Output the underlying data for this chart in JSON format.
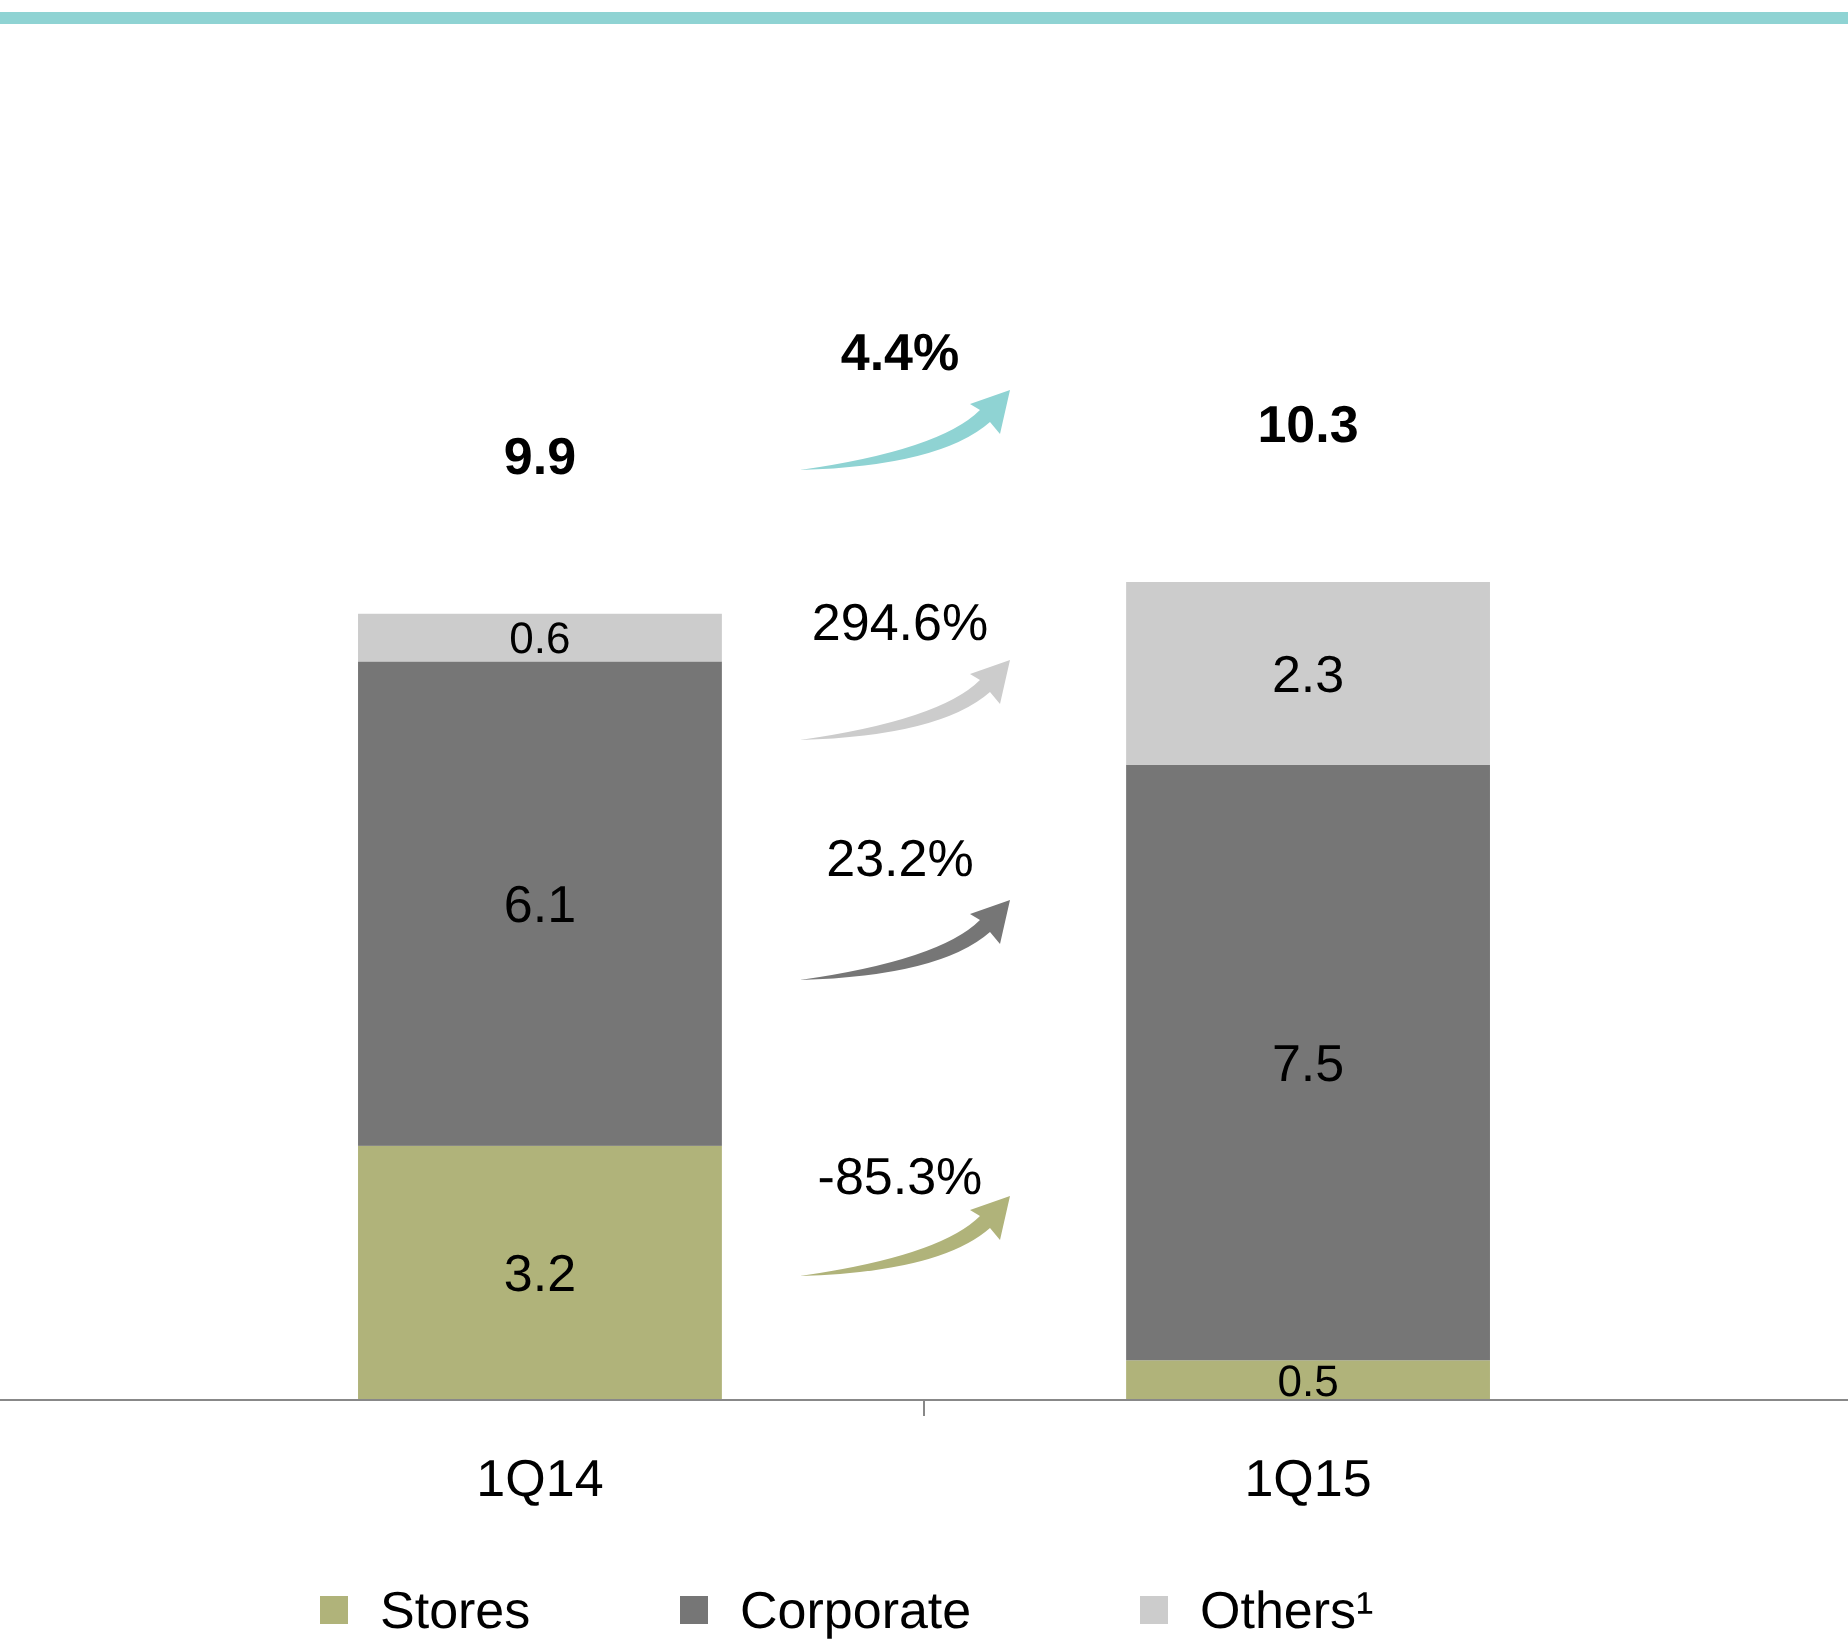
{
  "chart_data": {
    "type": "bar",
    "stacked": true,
    "categories": [
      "1Q14",
      "1Q15"
    ],
    "series": [
      {
        "name": "Stores",
        "color": "#b0b37a",
        "values": [
          3.2,
          0.5
        ]
      },
      {
        "name": "Corporate",
        "color": "#767676",
        "values": [
          6.1,
          7.5
        ]
      },
      {
        "name": "Others¹",
        "color": "#cccccc",
        "values": [
          0.6,
          2.3
        ]
      }
    ],
    "data_labels": true,
    "totals": [
      "9.9",
      "10.3"
    ],
    "legend": "bottom",
    "annotations": [
      "4.4%",
      "294.6%",
      "23.2%",
      "-85.3%"
    ]
  }
}
